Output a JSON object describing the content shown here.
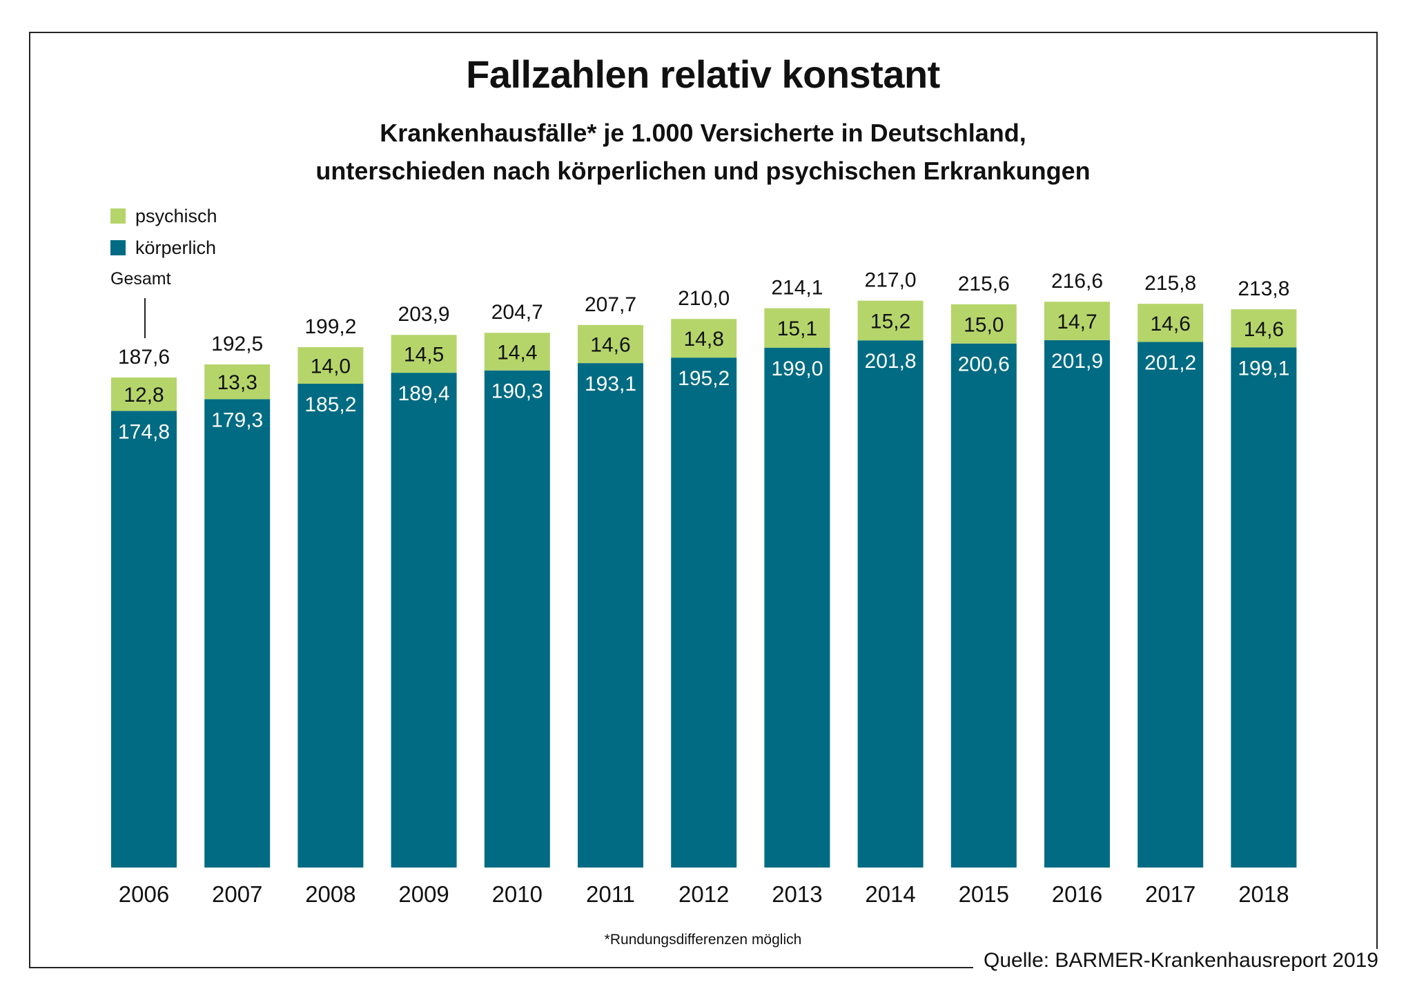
{
  "chart_data": {
    "type": "bar",
    "stacked": true,
    "title": "Fallzahlen relativ konstant",
    "subtitle": [
      "Krankenhausfälle* je 1.000 Versicherte in Deutschland,",
      "unterschieden nach körperlichen und psychischen Erkrankungen"
    ],
    "xlabel": "",
    "ylabel": "",
    "ylim": [
      0,
      230
    ],
    "grid": false,
    "legend_placement": "top-left",
    "categories": [
      "2006",
      "2007",
      "2008",
      "2009",
      "2010",
      "2011",
      "2012",
      "2013",
      "2014",
      "2015",
      "2016",
      "2017",
      "2018"
    ],
    "series": [
      {
        "name": "körperlich",
        "color": "#006b82",
        "values": [
          174.8,
          179.3,
          185.2,
          189.4,
          190.3,
          193.1,
          195.2,
          199.0,
          201.8,
          200.6,
          201.9,
          201.2,
          199.1
        ],
        "labels": [
          "174,8",
          "179,3",
          "185,2",
          "189,4",
          "190,3",
          "193,1",
          "195,2",
          "199,0",
          "201,8",
          "200,6",
          "201,9",
          "201,2",
          "199,1"
        ]
      },
      {
        "name": "psychisch",
        "color": "#b5d56a",
        "values": [
          12.8,
          13.3,
          14.0,
          14.5,
          14.4,
          14.6,
          14.8,
          15.1,
          15.2,
          15.0,
          14.7,
          14.6,
          14.6
        ],
        "labels": [
          "12,8",
          "13,3",
          "14,0",
          "14,5",
          "14,4",
          "14,6",
          "14,8",
          "15,1",
          "15,2",
          "15,0",
          "14,7",
          "14,6",
          "14,6"
        ]
      }
    ],
    "totals": {
      "name": "Gesamt",
      "values": [
        187.6,
        192.5,
        199.2,
        203.9,
        204.7,
        207.7,
        210.0,
        214.1,
        217.0,
        215.6,
        216.6,
        215.8,
        213.8
      ],
      "labels": [
        "187,6",
        "192,5",
        "199,2",
        "203,9",
        "204,7",
        "207,7",
        "210,0",
        "214,1",
        "217,0",
        "215,6",
        "216,6",
        "215,8",
        "213,8"
      ]
    },
    "legend": [
      {
        "label": "psychisch",
        "color": "#b5d56a"
      },
      {
        "label": "körperlich",
        "color": "#006b82"
      }
    ],
    "annotation": "Gesamt",
    "footnote": "*Rundungsdifferenzen möglich",
    "source": "Quelle: BARMER-Krankenhausreport 2019"
  }
}
